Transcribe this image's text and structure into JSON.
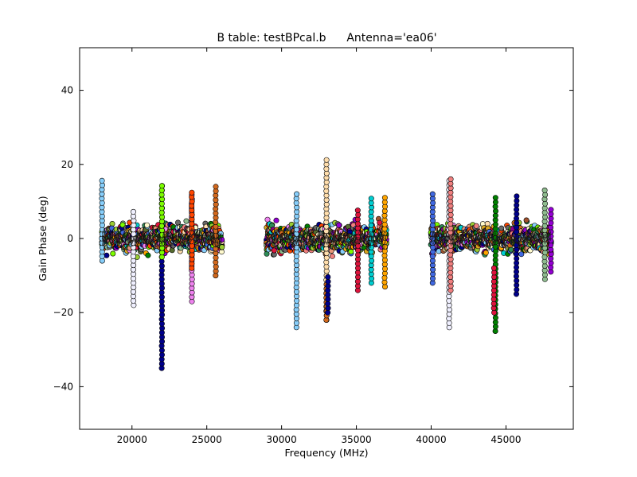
{
  "chart_data": {
    "type": "scatter",
    "title": "B table: testBPcal.b",
    "subtitle": "Antenna='ea06'",
    "xlabel": "Frequency (MHz)",
    "ylabel": "Gain Phase (deg)",
    "xlim": [
      16500,
      49500
    ],
    "ylim": [
      -51.5,
      51.5
    ],
    "xticks": [
      20000,
      25000,
      30000,
      35000,
      40000,
      45000
    ],
    "yticks": [
      40,
      20,
      0,
      -20,
      -40
    ],
    "xtick_labels": [
      "20000",
      "25000",
      "30000",
      "35000",
      "40000",
      "45000"
    ],
    "ytick_labels": [
      "40",
      "20",
      "0",
      "−20",
      "−40"
    ],
    "grid": false,
    "legend": "none",
    "marker": "circle",
    "colors": [
      "#00008b",
      "#7cfc00",
      "#ff4500",
      "#87cefa",
      "#ffdead",
      "#daa520",
      "#2e8b57",
      "#8b008b",
      "#f08080",
      "#00ced1",
      "#d2691e",
      "#ee82ee",
      "#556b2f",
      "#dc143c",
      "#9acd32",
      "#4169e1",
      "#e9967a",
      "#ffa500",
      "#008000",
      "#9400d3",
      "#8fbc8f",
      "#a0522d",
      "#696969",
      "#fffacd"
    ],
    "series": [
      {
        "x_range": [
          18000,
          26000
        ],
        "y_range": [
          -8,
          8
        ]
      },
      {
        "x_range": [
          29000,
          37000
        ],
        "y_range": [
          -8,
          8
        ]
      },
      {
        "x_range": [
          40000,
          48000
        ],
        "y_range": [
          -8,
          8
        ]
      }
    ],
    "outlier_columns": [
      {
        "x": 22000,
        "ymin": -35,
        "ymax": 15,
        "color": "#00008b"
      },
      {
        "x": 22000,
        "ymin": -5,
        "ymax": 15,
        "color": "#7cfc00"
      },
      {
        "x": 33000,
        "ymin": -22,
        "ymax": 22,
        "color": "#ffdead"
      },
      {
        "x": 33000,
        "ymin": -22,
        "ymax": -12,
        "color": "#d2691e"
      },
      {
        "x": 33100,
        "ymin": -20,
        "ymax": -10,
        "color": "#00008b"
      },
      {
        "x": 31000,
        "ymin": -24,
        "ymax": 13,
        "color": "#87cefa"
      },
      {
        "x": 44300,
        "ymin": -25,
        "ymax": 12,
        "color": "#008000"
      },
      {
        "x": 44200,
        "ymin": -20,
        "ymax": -8,
        "color": "#dc143c"
      },
      {
        "x": 41200,
        "ymin": -24,
        "ymax": 16,
        "color": "#f0f0ff"
      },
      {
        "x": 18000,
        "ymin": -6,
        "ymax": 16,
        "color": "#87cefa"
      },
      {
        "x": 20100,
        "ymin": -18,
        "ymax": 8,
        "color": "#f0f0ff"
      },
      {
        "x": 24000,
        "ymin": -17,
        "ymax": 12,
        "color": "#ee82ee"
      },
      {
        "x": 24000,
        "ymin": -8,
        "ymax": 13,
        "color": "#ff4500"
      },
      {
        "x": 25600,
        "ymin": -10,
        "ymax": 14,
        "color": "#d2691e"
      },
      {
        "x": 36000,
        "ymin": -12,
        "ymax": 11,
        "color": "#00ced1"
      },
      {
        "x": 36900,
        "ymin": -13,
        "ymax": 12,
        "color": "#ffa500"
      },
      {
        "x": 41300,
        "ymin": -14,
        "ymax": 17,
        "color": "#f08080"
      },
      {
        "x": 47600,
        "ymin": -11,
        "ymax": 14,
        "color": "#8fbc8f"
      },
      {
        "x": 48000,
        "ymin": -9,
        "ymax": 8,
        "color": "#9400d3"
      },
      {
        "x": 45700,
        "ymin": -15,
        "ymax": 12,
        "color": "#00008b"
      },
      {
        "x": 40100,
        "ymin": -12,
        "ymax": 13,
        "color": "#4169e1"
      },
      {
        "x": 35100,
        "ymin": -14,
        "ymax": 8,
        "color": "#dc143c"
      }
    ]
  }
}
